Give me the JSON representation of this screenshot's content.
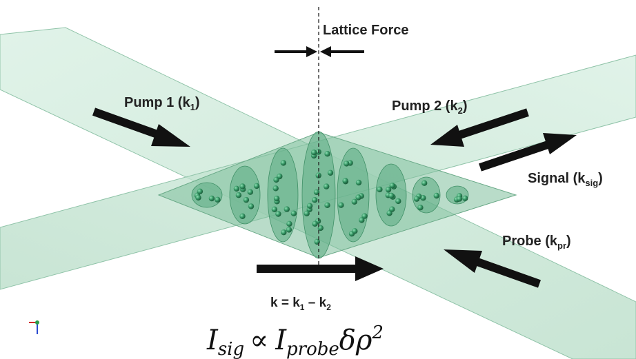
{
  "labels": {
    "lattice_force": "Lattice Force",
    "pump1": {
      "main": "Pump 1 (k",
      "sub": "1",
      "end": ")"
    },
    "pump2": {
      "main": "Pump 2 (k",
      "sub": "2",
      "end": ")"
    },
    "signal": {
      "main": "Signal (k",
      "sub": "sig",
      "end": ")"
    },
    "probe": {
      "main": "Probe (k",
      "sub": "pr",
      "end": ")"
    },
    "grating_k": {
      "p1": "k = k",
      "s1": "1",
      "p2": " – k",
      "s2": "2"
    }
  },
  "equation": {
    "I1": "I",
    "sub1": "sig",
    "prop": "∝",
    "I2": "I",
    "sub2": "probe",
    "delta": "δρ",
    "sup": "2"
  },
  "colors": {
    "beam": "#bfe3cf",
    "beam_edge": "#8fc3a8",
    "overlap": "#7fbf9c",
    "atom": "#2f8f5e",
    "arrow": "#111111"
  }
}
